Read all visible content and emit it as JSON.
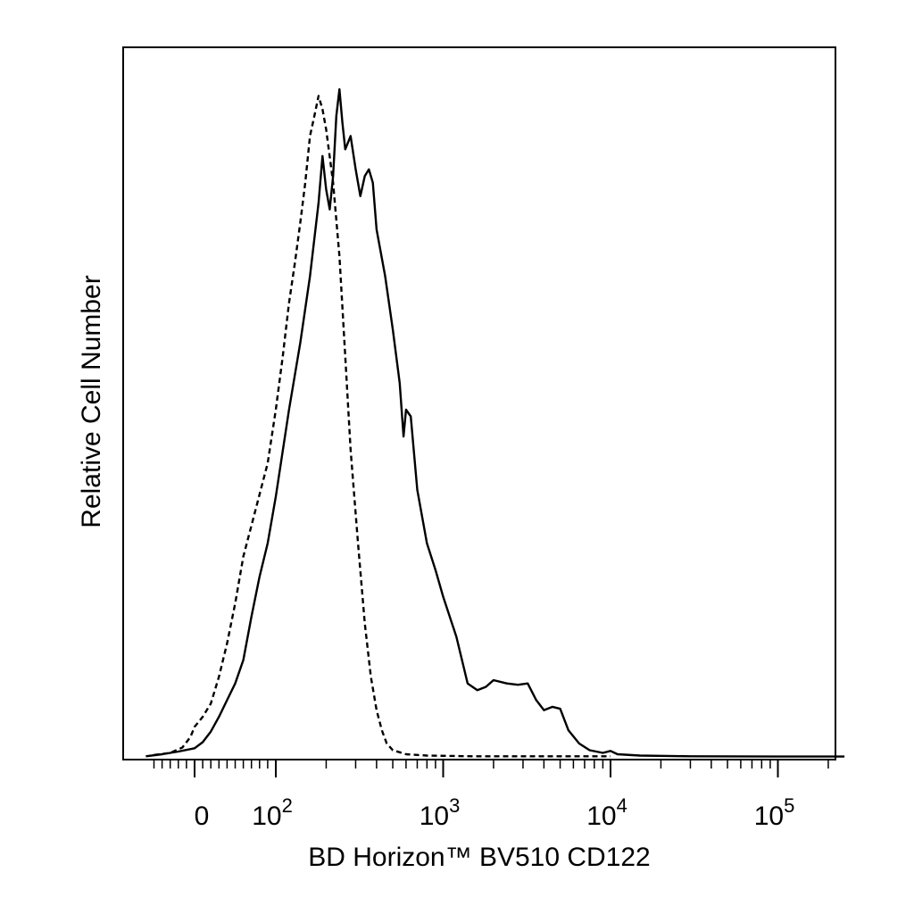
{
  "chart_data": {
    "type": "line",
    "title": "",
    "xlabel": "BD Horizon™ BV510 CD122",
    "ylabel": "Relative Cell Number",
    "x_scale": "biexponential",
    "xlim": [
      -60,
      250000
    ],
    "ylim": [
      0,
      1
    ],
    "grid": false,
    "legend": "none",
    "x_ticks": [
      {
        "value": 0,
        "base": "0",
        "exp": ""
      },
      {
        "value": 100,
        "base": "10",
        "exp": "2"
      },
      {
        "value": 1000,
        "base": "10",
        "exp": "3"
      },
      {
        "value": 10000,
        "base": "10",
        "exp": "4"
      },
      {
        "value": 100000,
        "base": "10",
        "exp": "5"
      }
    ],
    "series": [
      {
        "style": "dashed",
        "points": [
          [
            -50,
            0.003
          ],
          [
            -30,
            0.006
          ],
          [
            -15,
            0.014
          ],
          [
            -5,
            0.03
          ],
          [
            0,
            0.045
          ],
          [
            10,
            0.06
          ],
          [
            20,
            0.08
          ],
          [
            30,
            0.12
          ],
          [
            40,
            0.17
          ],
          [
            50,
            0.23
          ],
          [
            60,
            0.3
          ],
          [
            75,
            0.37
          ],
          [
            90,
            0.44
          ],
          [
            100,
            0.52
          ],
          [
            110,
            0.6
          ],
          [
            120,
            0.68
          ],
          [
            130,
            0.74
          ],
          [
            140,
            0.8
          ],
          [
            150,
            0.86
          ],
          [
            160,
            0.93
          ],
          [
            170,
            0.96
          ],
          [
            180,
            0.99
          ],
          [
            190,
            0.97
          ],
          [
            200,
            0.94
          ],
          [
            220,
            0.86
          ],
          [
            240,
            0.75
          ],
          [
            260,
            0.6
          ],
          [
            280,
            0.46
          ],
          [
            310,
            0.32
          ],
          [
            340,
            0.2
          ],
          [
            370,
            0.12
          ],
          [
            400,
            0.07
          ],
          [
            430,
            0.04
          ],
          [
            460,
            0.02
          ],
          [
            500,
            0.01
          ],
          [
            600,
            0.004
          ],
          [
            800,
            0.002
          ],
          [
            1500,
            0.001
          ],
          [
            10000,
            0.001
          ]
        ]
      },
      {
        "style": "solid",
        "points": [
          [
            -60,
            0.001
          ],
          [
            -40,
            0.004
          ],
          [
            -20,
            0.008
          ],
          [
            0,
            0.013
          ],
          [
            10,
            0.022
          ],
          [
            20,
            0.038
          ],
          [
            30,
            0.06
          ],
          [
            40,
            0.085
          ],
          [
            50,
            0.11
          ],
          [
            60,
            0.145
          ],
          [
            70,
            0.21
          ],
          [
            80,
            0.27
          ],
          [
            90,
            0.32
          ],
          [
            100,
            0.39
          ],
          [
            120,
            0.52
          ],
          [
            140,
            0.62
          ],
          [
            160,
            0.72
          ],
          [
            180,
            0.83
          ],
          [
            190,
            0.9
          ],
          [
            200,
            0.85
          ],
          [
            210,
            0.82
          ],
          [
            220,
            0.87
          ],
          [
            230,
            0.96
          ],
          [
            240,
            1.0
          ],
          [
            250,
            0.95
          ],
          [
            260,
            0.91
          ],
          [
            280,
            0.93
          ],
          [
            300,
            0.88
          ],
          [
            320,
            0.84
          ],
          [
            340,
            0.87
          ],
          [
            360,
            0.88
          ],
          [
            380,
            0.86
          ],
          [
            400,
            0.79
          ],
          [
            450,
            0.72
          ],
          [
            500,
            0.64
          ],
          [
            550,
            0.56
          ],
          [
            580,
            0.48
          ],
          [
            600,
            0.52
          ],
          [
            640,
            0.51
          ],
          [
            700,
            0.4
          ],
          [
            800,
            0.32
          ],
          [
            900,
            0.28
          ],
          [
            1000,
            0.24
          ],
          [
            1200,
            0.18
          ],
          [
            1400,
            0.11
          ],
          [
            1600,
            0.1
          ],
          [
            1800,
            0.105
          ],
          [
            2000,
            0.115
          ],
          [
            2400,
            0.11
          ],
          [
            2800,
            0.108
          ],
          [
            3200,
            0.11
          ],
          [
            3600,
            0.085
          ],
          [
            4000,
            0.07
          ],
          [
            4500,
            0.075
          ],
          [
            5000,
            0.072
          ],
          [
            5600,
            0.04
          ],
          [
            6500,
            0.02
          ],
          [
            7500,
            0.01
          ],
          [
            9000,
            0.006
          ],
          [
            10000,
            0.009
          ],
          [
            11000,
            0.004
          ],
          [
            15000,
            0.002
          ],
          [
            30000,
            0.001
          ],
          [
            100000,
            0.0005
          ],
          [
            250000,
            0.0005
          ]
        ]
      }
    ]
  }
}
